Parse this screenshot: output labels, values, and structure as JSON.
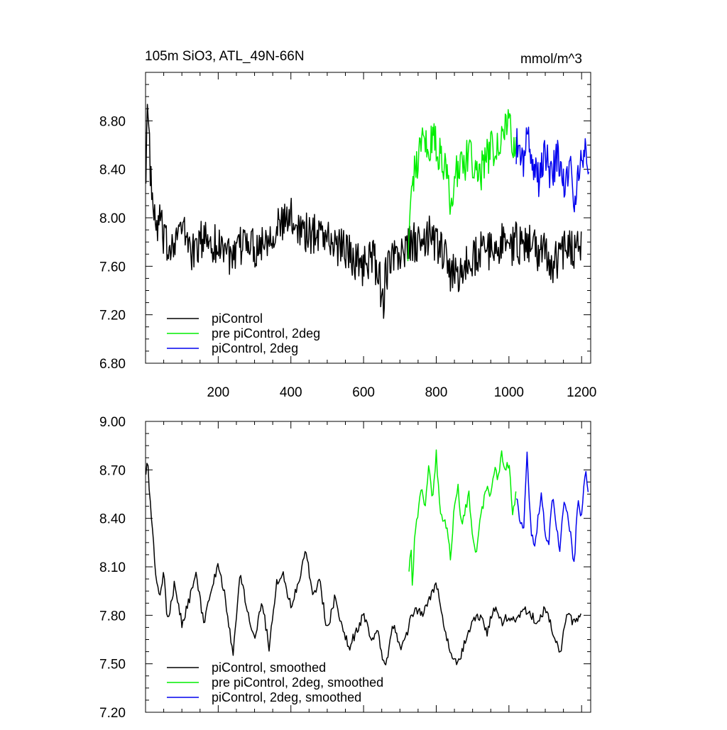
{
  "chart_data": [
    {
      "type": "line",
      "title": "105m SiO3, ATL_49N-66N",
      "units": "mmol/m^3",
      "xlim": [
        0,
        1225
      ],
      "ylim": [
        6.8,
        9.2
      ],
      "x_ticks": [
        200,
        400,
        600,
        800,
        1000,
        1200
      ],
      "y_ticks": [
        6.8,
        7.2,
        7.6,
        8.0,
        8.4,
        8.8
      ],
      "y_tick_labels": [
        "6.80",
        "7.20",
        "7.60",
        "8.00",
        "8.40",
        "8.80"
      ],
      "legend_position": "bottom-left",
      "series": [
        {
          "name": "piControl",
          "color": "#000000",
          "x": [
            1,
            5,
            10,
            15,
            20,
            25,
            30,
            40,
            50,
            60,
            80,
            100,
            120,
            130,
            150,
            170,
            200,
            220,
            240,
            260,
            280,
            300,
            320,
            350,
            380,
            400,
            420,
            450,
            480,
            500,
            520,
            540,
            560,
            580,
            600,
            620,
            640,
            655,
            660,
            680,
            700,
            720,
            740,
            760,
            780,
            800,
            820,
            840,
            860,
            880,
            900,
            920,
            940,
            960,
            980,
            1000,
            1020,
            1040,
            1060,
            1080,
            1100,
            1120,
            1140,
            1160,
            1180,
            1200
          ],
          "values": [
            8.45,
            8.9,
            8.6,
            8.3,
            8.1,
            7.95,
            7.9,
            8.0,
            7.8,
            7.75,
            7.85,
            7.9,
            7.8,
            7.7,
            7.8,
            7.85,
            7.75,
            7.8,
            7.6,
            7.75,
            7.85,
            7.75,
            7.8,
            7.9,
            7.95,
            8.0,
            7.95,
            7.85,
            7.9,
            7.85,
            7.75,
            7.8,
            7.7,
            7.65,
            7.6,
            7.7,
            7.55,
            7.3,
            7.55,
            7.65,
            7.7,
            7.75,
            7.8,
            7.75,
            7.85,
            7.8,
            7.7,
            7.55,
            7.5,
            7.6,
            7.65,
            7.75,
            7.7,
            7.75,
            7.8,
            7.75,
            7.8,
            7.75,
            7.8,
            7.7,
            7.75,
            7.6,
            7.7,
            7.8,
            7.75,
            7.8
          ]
        },
        {
          "name": "pre piControl, 2deg",
          "color": "#00ee00",
          "x": [
            722,
            730,
            740,
            750,
            760,
            770,
            780,
            790,
            800,
            810,
            820,
            830,
            840,
            850,
            860,
            870,
            880,
            890,
            900,
            910,
            920,
            930,
            940,
            950,
            960,
            970,
            980,
            990,
            1000,
            1010,
            1020
          ],
          "values": [
            7.8,
            8.1,
            8.4,
            8.5,
            8.6,
            8.65,
            8.55,
            8.7,
            8.6,
            8.5,
            8.45,
            8.3,
            8.15,
            8.35,
            8.4,
            8.5,
            8.4,
            8.6,
            8.45,
            8.3,
            8.35,
            8.45,
            8.5,
            8.55,
            8.6,
            8.65,
            8.7,
            8.75,
            8.8,
            8.65,
            8.55
          ]
        },
        {
          "name": "piControl, 2deg",
          "color": "#0000ee",
          "x": [
            1020,
            1030,
            1040,
            1050,
            1060,
            1070,
            1080,
            1090,
            1100,
            1110,
            1120,
            1130,
            1140,
            1150,
            1160,
            1170,
            1180,
            1190,
            1200,
            1210,
            1220
          ],
          "values": [
            8.6,
            8.55,
            8.35,
            8.7,
            8.5,
            8.4,
            8.3,
            8.45,
            8.55,
            8.4,
            8.35,
            8.5,
            8.45,
            8.3,
            8.35,
            8.5,
            8.1,
            8.3,
            8.55,
            8.5,
            8.45
          ]
        }
      ]
    },
    {
      "type": "line",
      "title": "",
      "xlim": [
        0,
        1225
      ],
      "ylim": [
        7.2,
        9.0
      ],
      "x_ticks": [
        200,
        400,
        600,
        800,
        1000,
        1200
      ],
      "y_ticks": [
        7.2,
        7.5,
        7.8,
        8.1,
        8.4,
        8.7,
        9.0
      ],
      "y_tick_labels": [
        "7.20",
        "7.50",
        "7.80",
        "8.10",
        "8.40",
        "8.70",
        "9.00"
      ],
      "legend_position": "bottom-left",
      "series": [
        {
          "name": "piControl, smoothed",
          "color": "#000000",
          "x": [
            1,
            5,
            10,
            15,
            20,
            30,
            40,
            50,
            60,
            80,
            100,
            120,
            140,
            160,
            180,
            200,
            220,
            240,
            260,
            280,
            300,
            320,
            340,
            360,
            380,
            400,
            420,
            440,
            460,
            480,
            500,
            520,
            540,
            560,
            580,
            600,
            620,
            640,
            660,
            680,
            700,
            720,
            740,
            760,
            780,
            800,
            820,
            840,
            860,
            880,
            900,
            920,
            940,
            960,
            980,
            1000,
            1020,
            1040,
            1060,
            1080,
            1100,
            1120,
            1140,
            1160,
            1180,
            1200
          ],
          "values": [
            8.7,
            8.77,
            8.6,
            8.45,
            8.3,
            8.0,
            7.9,
            8.1,
            7.75,
            8.0,
            7.75,
            7.9,
            8.05,
            7.75,
            7.95,
            8.1,
            7.9,
            7.55,
            8.05,
            7.85,
            7.65,
            7.9,
            7.6,
            8.0,
            8.05,
            7.85,
            8.0,
            8.2,
            7.95,
            8.0,
            7.7,
            7.9,
            7.75,
            7.6,
            7.7,
            7.8,
            7.65,
            7.7,
            7.45,
            7.75,
            7.6,
            7.7,
            7.85,
            7.8,
            7.9,
            8.0,
            7.75,
            7.55,
            7.5,
            7.65,
            7.75,
            7.8,
            7.7,
            7.85,
            7.75,
            7.8,
            7.75,
            7.85,
            7.8,
            7.75,
            7.85,
            7.7,
            7.55,
            7.8,
            7.75,
            7.8
          ]
        },
        {
          "name": "pre piControl, 2deg, smoothed",
          "color": "#00ee00",
          "x": [
            725,
            730,
            735,
            740,
            750,
            760,
            770,
            780,
            790,
            800,
            810,
            820,
            830,
            840,
            850,
            860,
            870,
            880,
            890,
            900,
            910,
            920,
            930,
            940,
            950,
            960,
            970,
            980,
            990,
            1000,
            1010,
            1020
          ],
          "values": [
            8.1,
            8.25,
            7.95,
            8.3,
            8.45,
            8.6,
            8.45,
            8.75,
            8.5,
            8.8,
            8.45,
            8.4,
            8.35,
            8.15,
            8.5,
            8.6,
            8.35,
            8.45,
            8.55,
            8.3,
            8.2,
            8.4,
            8.5,
            8.6,
            8.55,
            8.7,
            8.65,
            8.8,
            8.7,
            8.75,
            8.45,
            8.55
          ]
        },
        {
          "name": "piControl, 2deg, smoothed",
          "color": "#0000ee",
          "x": [
            1020,
            1030,
            1040,
            1050,
            1060,
            1070,
            1080,
            1090,
            1100,
            1110,
            1120,
            1130,
            1140,
            1150,
            1160,
            1170,
            1180,
            1190,
            1200,
            1210,
            1220
          ],
          "values": [
            8.55,
            8.4,
            8.3,
            8.8,
            8.35,
            8.2,
            8.4,
            8.55,
            8.3,
            8.25,
            8.55,
            8.35,
            8.2,
            8.5,
            8.45,
            8.3,
            8.1,
            8.55,
            8.4,
            8.7,
            8.5
          ]
        }
      ]
    }
  ]
}
